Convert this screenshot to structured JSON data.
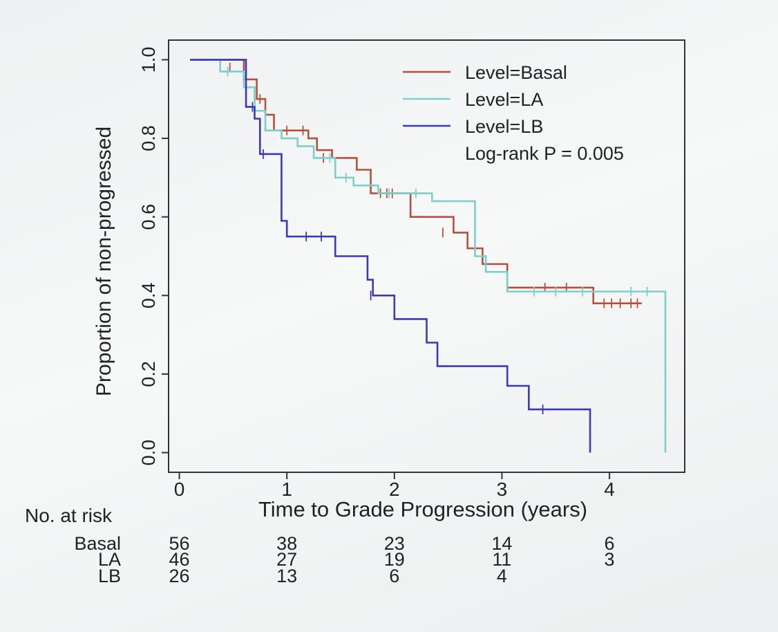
{
  "chart_data": {
    "type": "line",
    "subtype": "kaplan-meier step",
    "title": "",
    "xlabel": "Time to Grade Progression (years)",
    "ylabel": "Proportion of non-progressed",
    "xlim": [
      -0.1,
      4.7
    ],
    "ylim": [
      -0.05,
      1.05
    ],
    "x_ticks": [
      0,
      1,
      2,
      3,
      4
    ],
    "x_tick_labels": [
      "0",
      "1",
      "2",
      "3",
      "4"
    ],
    "y_ticks": [
      0.0,
      0.2,
      0.4,
      0.6,
      0.8,
      1.0
    ],
    "y_tick_labels": [
      "0.0",
      "0.2",
      "0.4",
      "0.6",
      "0.8",
      "1.0"
    ],
    "grid": false,
    "legend_position": "top-right",
    "annotation": "Log-rank P = 0.005",
    "series": [
      {
        "name": "Level=Basal",
        "color": "#b5503c",
        "x": [
          0.1,
          0.6,
          0.72,
          0.8,
          0.88,
          1.2,
          1.28,
          1.42,
          1.65,
          1.78,
          2.15,
          2.55,
          2.68,
          2.82,
          3.05,
          3.85,
          4.3
        ],
        "y": [
          1.0,
          0.95,
          0.9,
          0.86,
          0.82,
          0.8,
          0.77,
          0.75,
          0.72,
          0.66,
          0.6,
          0.56,
          0.52,
          0.48,
          0.42,
          0.38,
          0.38
        ],
        "censor_x": [
          0.47,
          0.75,
          1.0,
          1.15,
          1.34,
          1.87,
          1.93,
          1.98,
          2.45,
          3.4,
          3.6,
          3.95,
          4.02,
          4.1,
          4.2,
          4.26
        ],
        "censor_y": [
          0.98,
          0.9,
          0.82,
          0.82,
          0.75,
          0.66,
          0.66,
          0.66,
          0.56,
          0.42,
          0.42,
          0.38,
          0.38,
          0.38,
          0.38,
          0.38
        ]
      },
      {
        "name": "Level=LA",
        "color": "#7ccfca",
        "x": [
          0.1,
          0.38,
          0.6,
          0.7,
          0.8,
          0.95,
          1.1,
          1.25,
          1.45,
          1.62,
          1.85,
          2.05,
          2.35,
          2.75,
          2.85,
          3.05,
          4.47,
          4.52
        ],
        "y": [
          1.0,
          0.97,
          0.93,
          0.87,
          0.82,
          0.8,
          0.78,
          0.75,
          0.7,
          0.68,
          0.66,
          0.66,
          0.64,
          0.5,
          0.46,
          0.41,
          0.41,
          0.0
        ],
        "censor_x": [
          0.45,
          1.4,
          1.55,
          1.95,
          2.2,
          3.3,
          3.5,
          3.75,
          4.2,
          4.35
        ],
        "censor_y": [
          0.97,
          0.75,
          0.7,
          0.66,
          0.66,
          0.41,
          0.41,
          0.41,
          0.41,
          0.41
        ]
      },
      {
        "name": "Level=LB",
        "color": "#3a3ab8",
        "x": [
          0.1,
          0.62,
          0.7,
          0.75,
          0.95,
          1.0,
          1.45,
          1.75,
          1.8,
          2.0,
          2.3,
          2.4,
          3.05,
          3.25,
          3.8,
          3.82
        ],
        "y": [
          1.0,
          0.88,
          0.85,
          0.76,
          0.59,
          0.55,
          0.5,
          0.44,
          0.4,
          0.34,
          0.28,
          0.22,
          0.17,
          0.11,
          0.11,
          0.0
        ],
        "censor_x": [
          0.68,
          0.78,
          1.18,
          1.32,
          1.78,
          3.38
        ],
        "censor_y": [
          0.88,
          0.76,
          0.55,
          0.55,
          0.4,
          0.11
        ]
      }
    ]
  },
  "risk_table": {
    "title": "No. at risk",
    "times": [
      0,
      1,
      2,
      3,
      4
    ],
    "rows": [
      {
        "label": "Basal",
        "counts": [
          "56",
          "38",
          "23",
          "14",
          "6"
        ]
      },
      {
        "label": "LA",
        "counts": [
          "46",
          "27",
          "19",
          "11",
          "3"
        ]
      },
      {
        "label": "LB",
        "counts": [
          "26",
          "13",
          "6",
          "4",
          ""
        ]
      }
    ]
  }
}
